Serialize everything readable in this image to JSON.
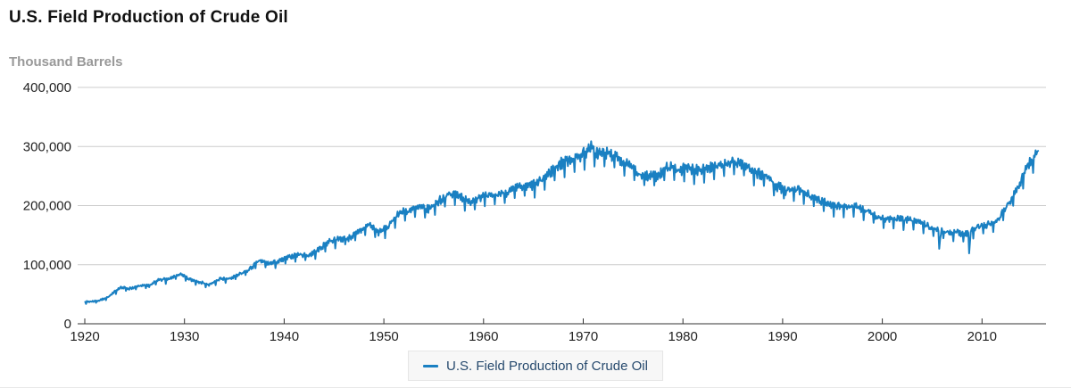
{
  "header": {
    "title": "U.S. Field Production of Crude Oil",
    "units": "Thousand Barrels"
  },
  "legend": {
    "label": "U.S. Field Production of Crude Oil",
    "marker": "line-dash-icon"
  },
  "colors": {
    "series_line": "#1a80c2",
    "grid_line": "#cccccc",
    "axis_line": "#333333",
    "tick_label": "#222222",
    "title_text": "#111111",
    "units_text": "#999999",
    "legend_text": "#26496d",
    "legend_bg": "#f7f7f7",
    "legend_border": "#e6e6e6"
  },
  "chart_data": {
    "type": "line",
    "title": "U.S. Field Production of Crude Oil",
    "ylabel": "Thousand Barrels",
    "xlabel": "",
    "grid": "horizontal",
    "legend_position": "bottom-center",
    "ylim": [
      0,
      400000
    ],
    "xlim": [
      1919.2,
      2016.5
    ],
    "y_ticks": [
      0,
      100000,
      200000,
      300000,
      400000
    ],
    "y_tick_labels": [
      "0",
      "100,000",
      "200,000",
      "300,000",
      "400,000"
    ],
    "x_ticks": [
      1920,
      1930,
      1940,
      1950,
      1960,
      1970,
      1980,
      1990,
      2000,
      2010
    ],
    "x_tick_labels": [
      "1920",
      "1930",
      "1940",
      "1950",
      "1960",
      "1970",
      "1980",
      "1990",
      "2000",
      "2010"
    ],
    "series": [
      {
        "name": "U.S. Field Production of Crude Oil",
        "color": "#1a80c2",
        "granularity": "monthly",
        "start_year": 1920,
        "end": "2015-08",
        "annual_avg_values_thousand_barrels_per_month": [
          37200,
          39400,
          46500,
          61300,
          59400,
          63700,
          64300,
          75100,
          74900,
          84000,
          74800,
          70900,
          65300,
          75500,
          75700,
          83000,
          91300,
          106500,
          101300,
          105400,
          112500,
          116900,
          115500,
          125500,
          139400,
          142800,
          144500,
          154800,
          167900,
          153500,
          164500,
          187300,
          190300,
          196400,
          192900,
          207100,
          217500,
          218100,
          204100,
          214600,
          214000,
          218500,
          223000,
          229400,
          231600,
          237400,
          252300,
          268000,
          276700,
          281000,
          293100,
          287800,
          287200,
          280100,
          266900,
          254700,
          247400,
          250800,
          264800,
          260100,
          261500,
          260700,
          263100,
          264300,
          270100,
          272900,
          264000,
          254000,
          247600,
          231600,
          223700,
          225600,
          218100,
          208300,
          202600,
          199500,
          196600,
          196200,
          190200,
          178900,
          177100,
          176400,
          174800,
          172800,
          164800,
          157500,
          154800,
          154000,
          152100,
          162800,
          166700,
          171700,
          197600,
          227200,
          266600,
          286000
        ],
        "notable_events": {
          "1970-10": 1.02,
          "1970-11": 1.035,
          "2005-09": 0.82,
          "2005-10": 0.9,
          "2008-09": 0.78,
          "2008-10": 0.88
        },
        "monthly_noise_pct": 2.2,
        "noise_seed": 7
      }
    ]
  }
}
